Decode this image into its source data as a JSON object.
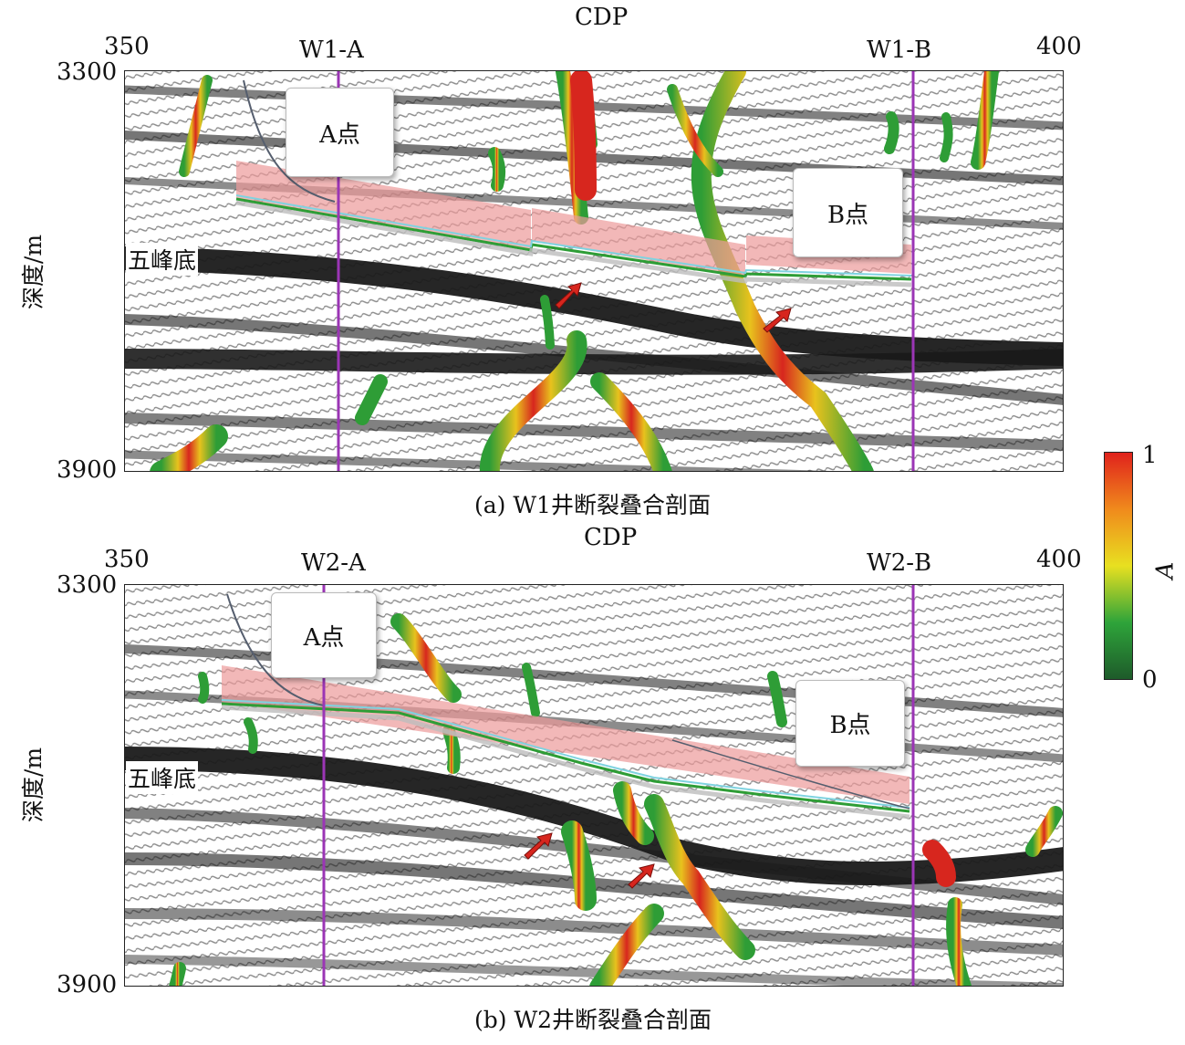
{
  "panels": [
    {
      "id": "a",
      "x_axis_title": "CDP",
      "x_start": "350",
      "x_end": "400",
      "well_a": "W1-A",
      "well_b": "W1-B",
      "y_top": "3300",
      "y_bottom": "3900",
      "y_axis_label": "深度/m",
      "layer_label": "五峰底",
      "point_a": "A点",
      "point_b": "B点",
      "caption": "(a) W1井断裂叠合剖面"
    },
    {
      "id": "b",
      "x_axis_title": "CDP",
      "x_start": "350",
      "x_end": "400",
      "well_a": "W2-A",
      "well_b": "W2-B",
      "y_top": "3300",
      "y_bottom": "3900",
      "y_axis_label": "深度/m",
      "layer_label": "五峰底",
      "point_a": "A点",
      "point_b": "B点",
      "caption": "(b) W2井断裂叠合剖面"
    }
  ],
  "colorbar": {
    "label": "A",
    "max_label": "1",
    "min_label": "0",
    "colors": [
      "#1e5b2a",
      "#2ea43a",
      "#e8e020",
      "#f08a1c",
      "#e0221c"
    ]
  },
  "colors": {
    "trajectory": "#ec9a9a",
    "well_line": "#9b35b5",
    "fault": "#d7261e",
    "fault_halo": "#2e9d36"
  }
}
